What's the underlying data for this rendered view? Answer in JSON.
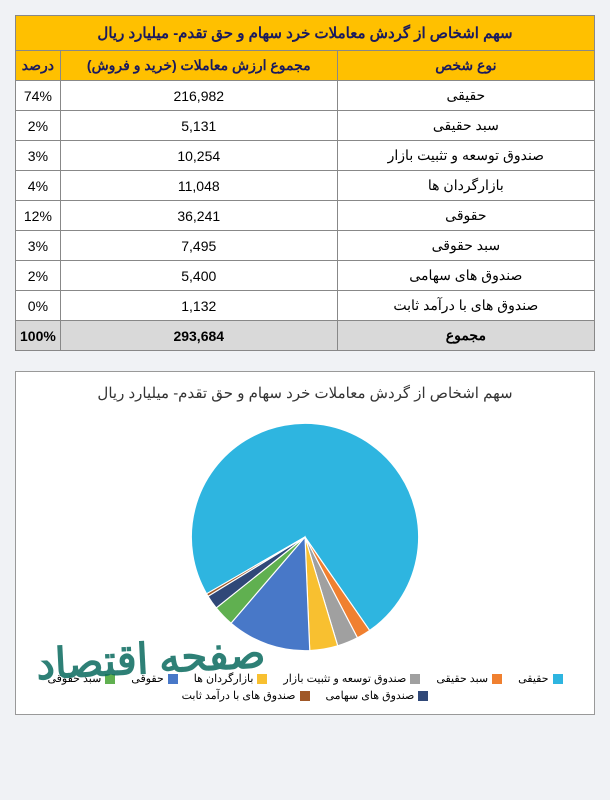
{
  "table": {
    "title": "سهم اشخاص از گردش معاملات خرد سهام و حق تقدم- میلیارد ریال",
    "columns": {
      "type": "نوع شخص",
      "value": "مجموع ارزش معاملات (خرید و فروش)",
      "percent": "درصد"
    },
    "rows": [
      {
        "type": "حقیقی",
        "value": "216,982",
        "percent": "74%"
      },
      {
        "type": "سبد حقیقی",
        "value": "5,131",
        "percent": "2%"
      },
      {
        "type": "صندوق توسعه و تثبیت بازار",
        "value": "10,254",
        "percent": "3%"
      },
      {
        "type": "بازارگردان ها",
        "value": "11,048",
        "percent": "4%"
      },
      {
        "type": "حقوقی",
        "value": "36,241",
        "percent": "12%"
      },
      {
        "type": "سبد حقوقی",
        "value": "7,495",
        "percent": "3%"
      },
      {
        "type": "صندوق های سهامی",
        "value": "5,400",
        "percent": "2%"
      },
      {
        "type": "صندوق های با درآمد ثابت",
        "value": "1,132",
        "percent": "0%"
      }
    ],
    "total": {
      "type": "مجموع",
      "value": "293,684",
      "percent": "100%"
    }
  },
  "chart": {
    "type": "pie",
    "title": "سهم اشخاص از گردش معاملات خرد سهام و حق تقدم- میلیارد ریال",
    "slices": [
      {
        "label": "حقیقی",
        "value": 74,
        "color": "#2eb5e0"
      },
      {
        "label": "سبد حقیقی",
        "value": 2,
        "color": "#f08030"
      },
      {
        "label": "صندوق توسعه و تثبیت بازار",
        "value": 3,
        "color": "#a0a0a0"
      },
      {
        "label": "بازارگردان ها",
        "value": 4,
        "color": "#f8c030"
      },
      {
        "label": "حقوقی",
        "value": 12,
        "color": "#4878c8"
      },
      {
        "label": "سبد حقوقی",
        "value": 3,
        "color": "#60b050"
      },
      {
        "label": "صندوق های سهامی",
        "value": 2,
        "color": "#304878"
      },
      {
        "label": "صندوق های با درآمد ثابت",
        "value": 0.4,
        "color": "#a05828"
      }
    ],
    "background_color": "#ffffff",
    "title_fontsize": 15,
    "legend_fontsize": 11,
    "start_angle": 150
  },
  "watermark": {
    "text": "صفحه اقتصاد",
    "color": "#0a6b5f"
  }
}
